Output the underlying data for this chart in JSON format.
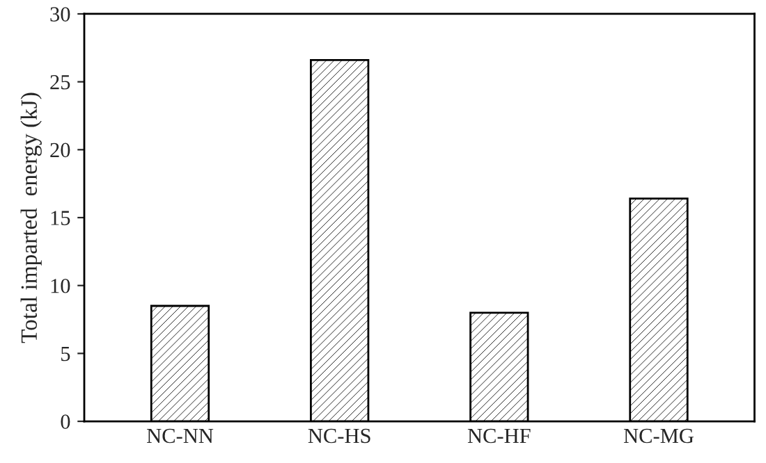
{
  "chart_data": {
    "type": "bar",
    "ylabel": "Total imparted  energy (kJ)",
    "categories": [
      "NC-NN",
      "NC-HS",
      "NC-HF",
      "NC-MG"
    ],
    "values": [
      8.5,
      26.6,
      8.0,
      16.4
    ],
    "color": "#000000",
    "ylim": [
      0,
      30
    ],
    "yticks": [
      0,
      5,
      10,
      15,
      20,
      25,
      30
    ],
    "grid": false
  }
}
